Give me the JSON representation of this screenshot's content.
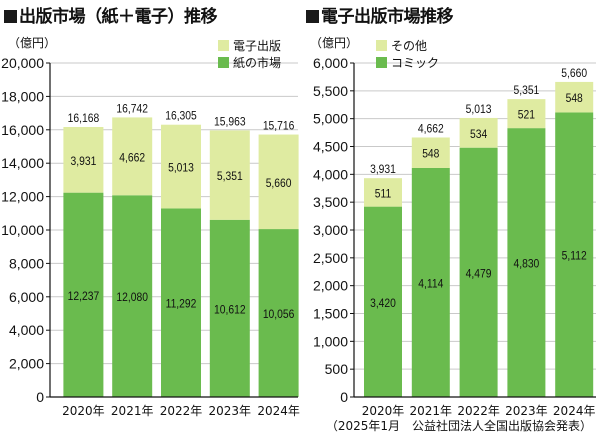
{
  "source": "（2025年1月　公益社団法人全国出版協会発表）",
  "chart_data": [
    {
      "type": "bar",
      "stacked": true,
      "title": "出版市場（紙＋電子）推移",
      "ylabel": "（億円）",
      "ylim": [
        0,
        20000
      ],
      "yticks": [
        0,
        2000,
        4000,
        6000,
        8000,
        10000,
        12000,
        14000,
        16000,
        18000,
        20000
      ],
      "ytick_labels": [
        "0",
        "2,000",
        "4,000",
        "6,000",
        "8,000",
        "10,000",
        "12,000",
        "14,000",
        "16,000",
        "18,000",
        "20,000"
      ],
      "categories": [
        "2020年",
        "2021年",
        "2022年",
        "2023年",
        "2024年"
      ],
      "series": [
        {
          "name": "紙の市場",
          "color": "#6abb4e",
          "values": [
            12237,
            12080,
            11292,
            10612,
            10056
          ],
          "labels": [
            "12,237",
            "12,080",
            "11,292",
            "10,612",
            "10,056"
          ]
        },
        {
          "name": "電子出版",
          "color": "#dfeba1",
          "values": [
            3931,
            4662,
            5013,
            5351,
            5660
          ],
          "labels": [
            "3,931",
            "4,662",
            "5,013",
            "5,351",
            "5,660"
          ]
        }
      ],
      "totals": [
        16168,
        16742,
        16305,
        15963,
        15716
      ],
      "total_labels": [
        "16,168",
        "16,742",
        "16,305",
        "15,963",
        "15,716"
      ],
      "legend": [
        {
          "label": "電子出版",
          "color": "#dfeba1"
        },
        {
          "label": "紙の市場",
          "color": "#6abb4e"
        }
      ]
    },
    {
      "type": "bar",
      "stacked": true,
      "title": "電子出版市場推移",
      "ylabel": "（億円）",
      "ylim": [
        0,
        6000
      ],
      "yticks": [
        0,
        500,
        1000,
        1500,
        2000,
        2500,
        3000,
        3500,
        4000,
        4500,
        5000,
        5500,
        6000
      ],
      "ytick_labels": [
        "0",
        "500",
        "1,000",
        "1,500",
        "2,000",
        "2,500",
        "3,000",
        "3,500",
        "4,000",
        "4,500",
        "5,000",
        "5,500",
        "6,000"
      ],
      "categories": [
        "2020年",
        "2021年",
        "2022年",
        "2023年",
        "2024年"
      ],
      "series": [
        {
          "name": "コミック",
          "color": "#6abb4e",
          "values": [
            3420,
            4114,
            4479,
            4830,
            5112
          ],
          "labels": [
            "3,420",
            "4,114",
            "4,479",
            "4,830",
            "5,112"
          ]
        },
        {
          "name": "その他",
          "color": "#dfeba1",
          "values": [
            511,
            548,
            534,
            521,
            548
          ],
          "labels": [
            "511",
            "548",
            "534",
            "521",
            "548"
          ]
        }
      ],
      "totals": [
        3931,
        4662,
        5013,
        5351,
        5660
      ],
      "total_labels": [
        "3,931",
        "4,662",
        "5,013",
        "5,351",
        "5,660"
      ],
      "legend": [
        {
          "label": "その他",
          "color": "#dfeba1"
        },
        {
          "label": "コミック",
          "color": "#6abb4e"
        }
      ]
    }
  ]
}
